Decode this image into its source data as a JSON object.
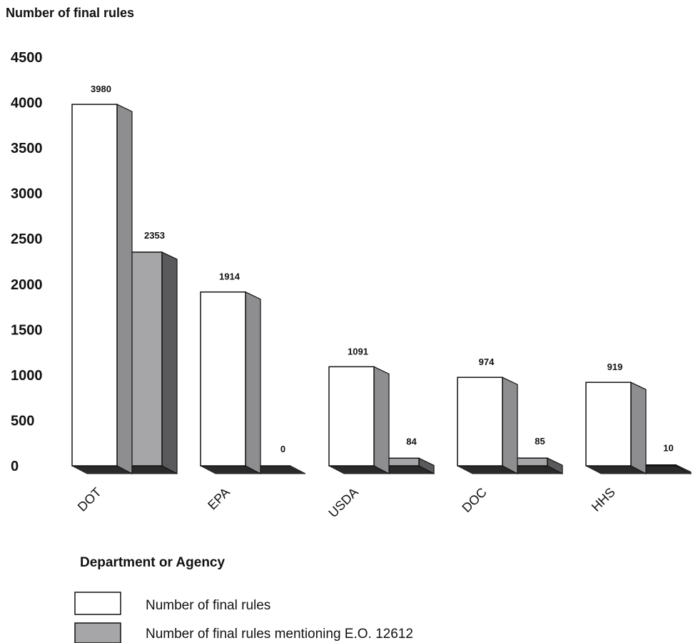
{
  "chart_data": {
    "type": "bar",
    "ylabel": "Number of final rules",
    "xlabel": "Department or Agency",
    "categories": [
      "DOT",
      "EPA",
      "USDA",
      "DOC",
      "HHS"
    ],
    "series": [
      {
        "name": "Number of final rules",
        "values": [
          3980,
          1914,
          1091,
          974,
          919
        ],
        "color": "#ffffff"
      },
      {
        "name": "Number of final rules mentioning E.O. 12612",
        "values": [
          2353,
          0,
          84,
          85,
          10
        ],
        "color": "#a6a6a8"
      }
    ],
    "ylim": [
      0,
      4500
    ],
    "yticks": [
      0,
      500,
      1000,
      1500,
      2000,
      2500,
      3000,
      3500,
      4000,
      4500
    ],
    "grid": false,
    "legend": "bottom-left",
    "three_d": true,
    "colors": {
      "front_gray": "#a6a6a8",
      "side_gray": "#8e8e90",
      "side_dark": "#5a5a5c",
      "floor": "#2a2a2a"
    }
  }
}
